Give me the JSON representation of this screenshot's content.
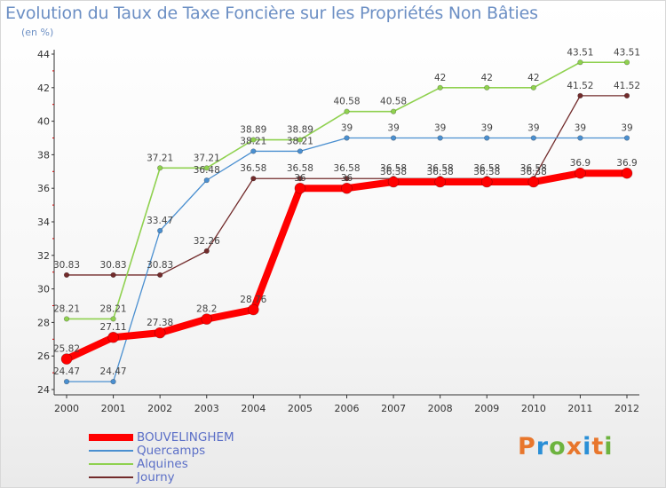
{
  "header": {
    "title": "Evolution du Taux de Taxe Foncière sur les Propriétés Non Bâties",
    "subtitle": "(en %)"
  },
  "logo": {
    "text": "Proxiti",
    "colors": [
      "#e8762c",
      "#2a8fd6",
      "#6db33f",
      "#e8762c",
      "#2a8fd6",
      "#e8762c",
      "#6db33f"
    ]
  },
  "chart_data": {
    "type": "line",
    "title": "Evolution du Taux de Taxe Foncière sur les Propriétés Non Bâties",
    "ylabel": "(en %)",
    "xlabel": "",
    "categories": [
      "2000",
      "2001",
      "2002",
      "2003",
      "2004",
      "2005",
      "2006",
      "2007",
      "2008",
      "2009",
      "2010",
      "2011",
      "2012"
    ],
    "ylim": [
      24,
      44
    ],
    "yticks": [
      24,
      26,
      28,
      30,
      32,
      34,
      36,
      38,
      40,
      42,
      44
    ],
    "grid": false,
    "legend_position": "bottom-left",
    "series": [
      {
        "name": "Journy",
        "color": "#722b2b",
        "width": 1.3,
        "marker": 2.8,
        "values": [
          30.83,
          30.83,
          30.83,
          32.26,
          36.58,
          36.58,
          36.58,
          36.58,
          36.58,
          36.58,
          36.58,
          41.52,
          41.52
        ],
        "labels": [
          "30.83",
          "30.83",
          "30.83",
          "32.26",
          "36.58",
          "36.58",
          "36.58",
          "36.58",
          "36.58",
          "36.58",
          "36.58",
          "41.52",
          "41.52"
        ]
      },
      {
        "name": "Alquines",
        "color": "#8fd14f",
        "width": 1.6,
        "marker": 2.8,
        "values": [
          28.21,
          28.21,
          37.21,
          37.21,
          38.89,
          38.89,
          40.58,
          40.58,
          42,
          42,
          42,
          43.51,
          43.51
        ],
        "labels": [
          "28.21",
          "28.21",
          "37.21",
          "37.21",
          "38.89",
          "38.89",
          "40.58",
          "40.58",
          "42",
          "42",
          "42",
          "43.51",
          "43.51"
        ]
      },
      {
        "name": "Quercamps",
        "color": "#4a8fd0",
        "width": 1.3,
        "marker": 2.8,
        "values": [
          24.47,
          24.47,
          33.47,
          36.48,
          38.21,
          38.21,
          39,
          39,
          39,
          39,
          39,
          39,
          39
        ],
        "labels": [
          "24.47",
          "24.47",
          "33.47",
          "36.48",
          "38.21",
          "38.21",
          "39",
          "39",
          "39",
          "39",
          "39",
          "39",
          "39"
        ]
      },
      {
        "name": "BOUVELINGHEM",
        "color": "#ff0000",
        "width": 8,
        "marker": 6,
        "values": [
          25.82,
          27.11,
          27.38,
          28.2,
          28.76,
          36,
          36,
          36.38,
          36.38,
          36.38,
          36.38,
          36.9,
          36.9
        ],
        "labels": [
          "25.82",
          "27.11",
          "27.38",
          "28.2",
          "28.76",
          "36",
          "36",
          "36.38",
          "36.38",
          "36.38",
          "36.38",
          "36.9",
          "36.9"
        ]
      }
    ],
    "legend_order": [
      "BOUVELINGHEM",
      "Quercamps",
      "Alquines",
      "Journy"
    ]
  }
}
